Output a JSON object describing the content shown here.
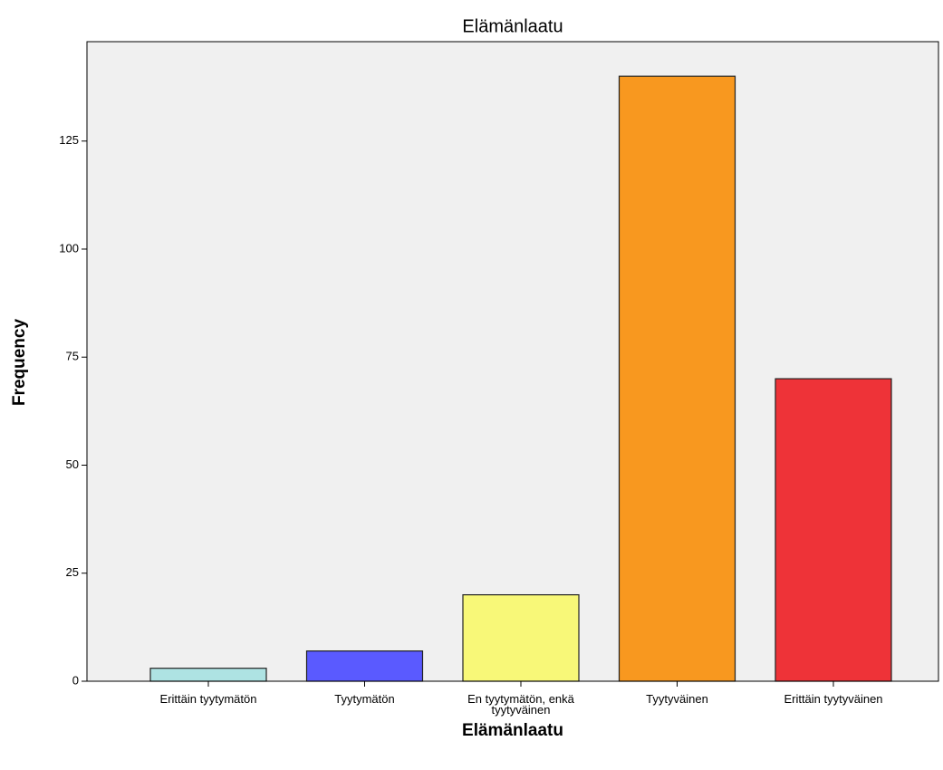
{
  "chart_data": {
    "type": "bar",
    "title": "Elämänlaatu",
    "x_label": "Elämänlaatu",
    "y_label": "Frequency",
    "categories": [
      "Erittäin tyytymätön",
      "Tyytymätön",
      "En tyytymätön, enkä tyytyväinen",
      "Tyytyväinen",
      "Erittäin tyytyväinen"
    ],
    "values": [
      3,
      7,
      20,
      140,
      70
    ],
    "colors": [
      "#aee3e3",
      "#5a5aff",
      "#f8f878",
      "#f8981f",
      "#ee3338"
    ],
    "ylim": [
      0,
      148
    ],
    "yticks": [
      0,
      25,
      50,
      75,
      100,
      125
    ],
    "grid": false
  }
}
